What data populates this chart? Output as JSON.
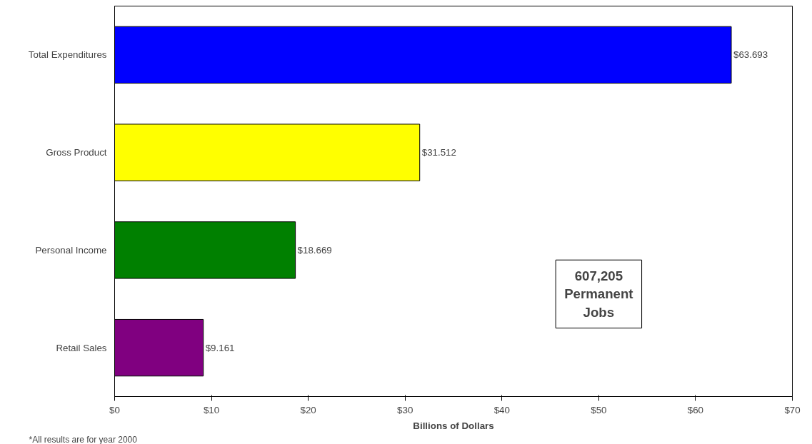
{
  "chart_data": {
    "type": "bar",
    "orientation": "horizontal",
    "xlabel": "Billions of Dollars",
    "categories": [
      "Total Expenditures",
      "Gross Product",
      "Personal Income",
      "Retail Sales"
    ],
    "values": [
      63.693,
      31.512,
      18.669,
      9.161
    ],
    "colors": [
      "#0000ff",
      "#ffff00",
      "#008000",
      "#800080"
    ],
    "value_labels": [
      "$63.693",
      "$31.512",
      "$18.669",
      "$9.161"
    ],
    "xlim": [
      0,
      70
    ],
    "xticks": [
      {
        "value": 0,
        "label": "$0"
      },
      {
        "value": 10,
        "label": "$10"
      },
      {
        "value": 20,
        "label": "$20"
      },
      {
        "value": 30,
        "label": "$30"
      },
      {
        "value": 40,
        "label": "$40"
      },
      {
        "value": 50,
        "label": "$50"
      },
      {
        "value": 60,
        "label": "$60"
      },
      {
        "value": 70,
        "label": "$70"
      }
    ],
    "grid": false,
    "annotations": [
      "607,205\nPermanent\nJobs",
      "*All results are for year 2000"
    ]
  }
}
